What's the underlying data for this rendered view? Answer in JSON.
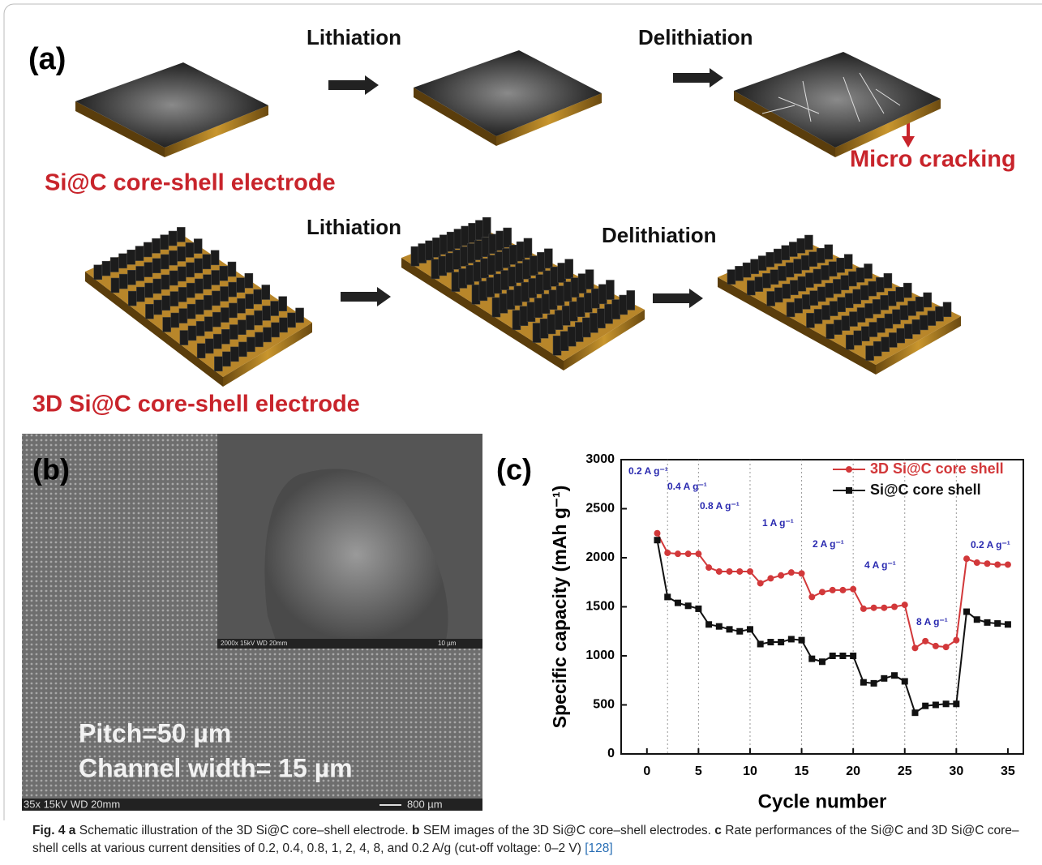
{
  "panel_a": {
    "label": "(a)",
    "top_row": {
      "step1": "Lithiation",
      "step2": "Delithiation",
      "annotation": "Micro cracking",
      "electrode": "Si@C core-shell electrode"
    },
    "bottom_row": {
      "step1": "Lithiation",
      "step2": "Delithiation",
      "electrode": "3D Si@C core-shell electrode"
    }
  },
  "panel_b": {
    "label": "(b)",
    "pitch": "Pitch=50 µm",
    "channel": "Channel width= 15 µm",
    "info": "35x 15kV   WD 20mm",
    "scale": "800 µm",
    "inset_info": "2000x 15kV   WD 20mm",
    "inset_scale": "10 µm"
  },
  "chart_data": {
    "type": "line",
    "panel_label": "(c)",
    "x_label": "Cycle number",
    "y_label": "Specific capacity (mAh g⁻¹)",
    "x": [
      1,
      2,
      3,
      4,
      5,
      6,
      7,
      8,
      9,
      10,
      11,
      12,
      13,
      14,
      15,
      16,
      17,
      18,
      19,
      20,
      21,
      22,
      23,
      24,
      25,
      26,
      27,
      28,
      29,
      30,
      31,
      32,
      33,
      34,
      35
    ],
    "series": [
      {
        "name": "3D Si@C core shell",
        "color": "#d2383a",
        "marker": "circle",
        "values": [
          2250,
          2050,
          2040,
          2040,
          2040,
          1900,
          1860,
          1860,
          1860,
          1860,
          1740,
          1790,
          1820,
          1850,
          1840,
          1600,
          1650,
          1670,
          1670,
          1680,
          1480,
          1490,
          1490,
          1500,
          1520,
          1080,
          1150,
          1100,
          1090,
          1160,
          1990,
          1950,
          1940,
          1930,
          1930
        ]
      },
      {
        "name": "Si@C core shell",
        "color": "#111111",
        "marker": "square",
        "values": [
          2180,
          1600,
          1540,
          1510,
          1480,
          1320,
          1300,
          1270,
          1250,
          1270,
          1120,
          1140,
          1140,
          1170,
          1160,
          970,
          940,
          1000,
          1000,
          1000,
          730,
          720,
          770,
          800,
          740,
          420,
          490,
          500,
          510,
          510,
          1450,
          1370,
          1340,
          1330,
          1320
        ]
      }
    ],
    "xlim": [
      -2.5,
      36.5
    ],
    "xticks": [
      0,
      5,
      10,
      15,
      20,
      25,
      30,
      35
    ],
    "ylim": [
      0,
      3000
    ],
    "yticks": [
      0,
      500,
      1000,
      1500,
      2000,
      2500,
      3000
    ],
    "dividers": [
      2,
      5,
      10,
      15,
      20,
      25,
      30
    ],
    "annotations": [
      "0.2 A g⁻¹",
      "0.4 A g⁻¹",
      "0.8 A g⁻¹",
      "1 A g⁻¹",
      "2 A g⁻¹",
      "4 A g⁻¹",
      "8 A g⁻¹",
      "0.2 A g⁻¹"
    ],
    "annotation_color": "#2a2ab0",
    "legend": "upper right"
  },
  "caption": {
    "parts": [
      {
        "text": "Fig. 4",
        "bold": true
      },
      {
        "text": " a",
        "bold": true
      },
      {
        "text": " Schematic illustration of the 3D Si@C core–shell electrode."
      },
      {
        "text": " b",
        "bold": true
      },
      {
        "text": " SEM images of the 3D Si@C core–shell electrodes."
      },
      {
        "text": " c",
        "bold": true
      },
      {
        "text": " Rate performances of the Si@C and 3D Si@C core–shell cells at various current densities of 0.2, 0.4, 0.8, 1, 2, 4, 8, and 0.2 A/g (cut-off voltage: 0–2 V) "
      },
      {
        "text": "[128]",
        "color": "#2a6fb5"
      }
    ]
  }
}
